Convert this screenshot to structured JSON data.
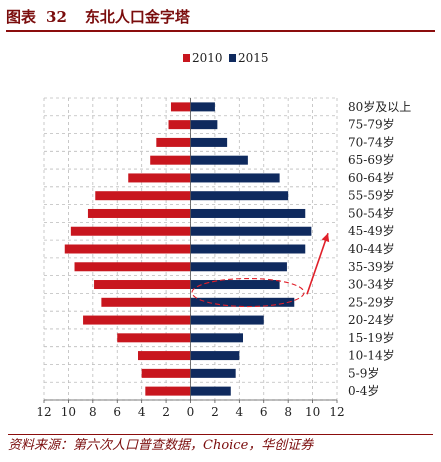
{
  "header": {
    "label": "图表",
    "number": "32",
    "title": "东北人口金字塔"
  },
  "footer": {
    "source": "资料来源：第六次人口普查数据，Choice，华创证券"
  },
  "colors": {
    "series_2010": "#c8161e",
    "series_2015": "#0f2a5e",
    "highlight": "#e0202a"
  },
  "chart_data": {
    "type": "bar",
    "orientation": "horizontal-population-pyramid",
    "categories": [
      "0-4岁",
      "5-9岁",
      "10-14岁",
      "15-19岁",
      "20-24岁",
      "25-29岁",
      "30-34岁",
      "35-39岁",
      "40-44岁",
      "45-49岁",
      "50-54岁",
      "55-59岁",
      "60-64岁",
      "65-69岁",
      "70-74岁",
      "75-79岁",
      "80岁及以上"
    ],
    "series": [
      {
        "name": "2010",
        "side": "left",
        "values": [
          3.7,
          4.0,
          4.3,
          6.0,
          8.8,
          7.3,
          7.9,
          9.5,
          10.3,
          9.8,
          8.4,
          7.8,
          5.1,
          3.3,
          2.8,
          1.8,
          1.6
        ]
      },
      {
        "name": "2015",
        "side": "right",
        "values": [
          3.3,
          3.7,
          4.0,
          4.3,
          6.0,
          8.5,
          7.3,
          7.9,
          9.4,
          9.9,
          9.4,
          8.0,
          7.3,
          4.7,
          3.0,
          2.2,
          2.0
        ]
      }
    ],
    "xlim": [
      -12,
      12
    ],
    "xticks": [
      "12",
      "10",
      "8",
      "6",
      "4",
      "2",
      "0",
      "2",
      "4",
      "6",
      "8",
      "10",
      "12"
    ],
    "xtick_values": [
      -12,
      -10,
      -8,
      -6,
      -4,
      -2,
      0,
      2,
      4,
      6,
      8,
      10,
      12
    ],
    "grid": true,
    "legend": "top-center",
    "annotations": [
      {
        "type": "dashed-ellipse",
        "target_category": "30-34岁"
      },
      {
        "type": "arrow",
        "from_category": "25-29岁",
        "to_category": "45-49岁"
      }
    ]
  }
}
